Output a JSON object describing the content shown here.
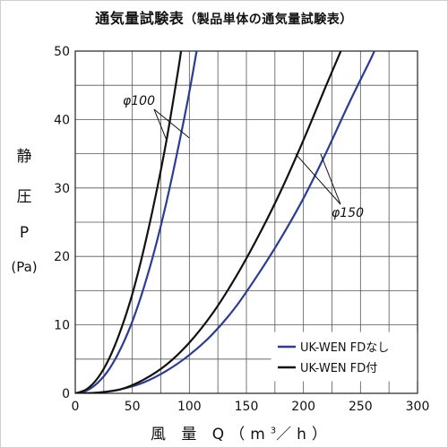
{
  "title": {
    "main": "通気量試験表",
    "sub": "（製品単体の通気量試験表）"
  },
  "colors": {
    "blue": "#2a3d94",
    "black": "#111111",
    "grid": "#555555"
  },
  "chart_data": {
    "type": "line",
    "title": "通気量試験表（製品単体の通気量試験表）",
    "xlabel": "風 量 Q（m³／h）",
    "ylabel": [
      "静",
      "圧",
      "P",
      "(Pa)"
    ],
    "xlim": [
      0,
      300
    ],
    "ylim": [
      0,
      50
    ],
    "xticks": [
      0,
      50,
      100,
      150,
      200,
      250,
      300
    ],
    "yticks": [
      0,
      10,
      20,
      30,
      40,
      50
    ],
    "grid": true,
    "legend_position": "bottom-right",
    "legend": [
      {
        "label": "UK-WEN FDなし",
        "color": "#2a3d94"
      },
      {
        "label": "UK-WEN FD付",
        "color": "#111111"
      }
    ],
    "annotations": [
      "φ100",
      "φ150"
    ],
    "series": [
      {
        "group": "φ100",
        "color": "#2a3d94",
        "x": [
          0,
          10,
          20,
          30,
          40,
          50,
          60,
          70,
          80,
          90,
          100,
          110,
          112
        ],
        "y": [
          0,
          0.4,
          1.6,
          3.6,
          6.6,
          10.5,
          15.4,
          21.2,
          28.0,
          35.7,
          44.0,
          53.5,
          55
        ]
      },
      {
        "group": "φ100",
        "color": "#111111",
        "x": [
          0,
          10,
          20,
          30,
          40,
          50,
          60,
          70,
          80,
          90,
          94
        ],
        "y": [
          0,
          0.6,
          2.3,
          5.2,
          9.3,
          14.5,
          21.0,
          28.5,
          37.0,
          47.0,
          51.5
        ]
      },
      {
        "group": "φ150",
        "color": "#2a3d94",
        "x": [
          0,
          20,
          40,
          60,
          80,
          100,
          120,
          140,
          160,
          180,
          200,
          220,
          240,
          260,
          263
        ],
        "y": [
          0,
          0.1,
          0.6,
          1.6,
          3.3,
          5.6,
          8.6,
          12.5,
          17.3,
          22.6,
          28.5,
          35.2,
          42.4,
          49.2,
          50.5
        ]
      },
      {
        "group": "φ150",
        "color": "#111111",
        "x": [
          0,
          20,
          40,
          60,
          80,
          100,
          120,
          140,
          160,
          180,
          200,
          220,
          234
        ],
        "y": [
          0,
          0.1,
          0.6,
          2.0,
          4.2,
          7.4,
          11.6,
          16.8,
          22.8,
          29.5,
          37.0,
          45.0,
          50.5
        ]
      }
    ]
  }
}
